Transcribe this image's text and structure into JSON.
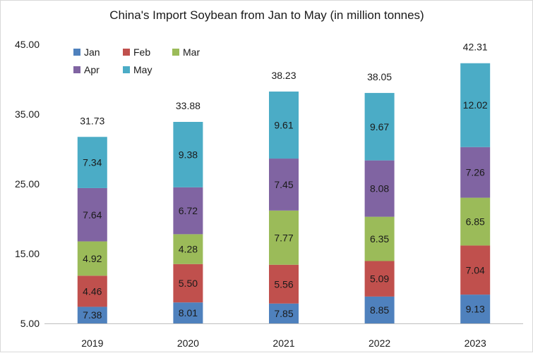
{
  "chart_data": {
    "type": "bar",
    "stacked": true,
    "title": "China's Import Soybean from Jan to May  (in million tonnes)",
    "categories": [
      "2019",
      "2020",
      "2021",
      "2022",
      "2023"
    ],
    "y_ticks": [
      "5.00",
      "15.00",
      "25.00",
      "35.00",
      "45.00"
    ],
    "ylim": [
      5,
      45
    ],
    "grid": false,
    "legend_position": "top-left",
    "series": [
      {
        "name": "Jan",
        "color": "#4f81bd",
        "values": [
          7.38,
          8.01,
          7.85,
          8.85,
          9.13
        ],
        "labels": [
          "7.38",
          "8.01",
          "7.85",
          "8.85",
          "9.13"
        ]
      },
      {
        "name": "Feb",
        "color": "#c0504d",
        "values": [
          4.46,
          5.5,
          5.56,
          5.09,
          7.04
        ],
        "labels": [
          "4.46",
          "5.50",
          "5.56",
          "5.09",
          "7.04"
        ]
      },
      {
        "name": "Mar",
        "color": "#9bbb59",
        "values": [
          4.92,
          4.28,
          7.77,
          6.35,
          6.85
        ],
        "labels": [
          "4.92",
          "4.28",
          "7.77",
          "6.35",
          "6.85"
        ]
      },
      {
        "name": "Apr",
        "color": "#8064a2",
        "values": [
          7.64,
          6.72,
          7.45,
          8.08,
          7.26
        ],
        "labels": [
          "7.64",
          "6.72",
          "7.45",
          "8.08",
          "7.26"
        ]
      },
      {
        "name": "May",
        "color": "#4bacc6",
        "values": [
          7.34,
          9.38,
          9.61,
          9.67,
          12.02
        ],
        "labels": [
          "7.34",
          "9.38",
          "9.61",
          "9.67",
          "12.02"
        ]
      }
    ],
    "totals": [
      "31.73",
      "33.88",
      "38.23",
      "38.05",
      "42.31"
    ]
  }
}
